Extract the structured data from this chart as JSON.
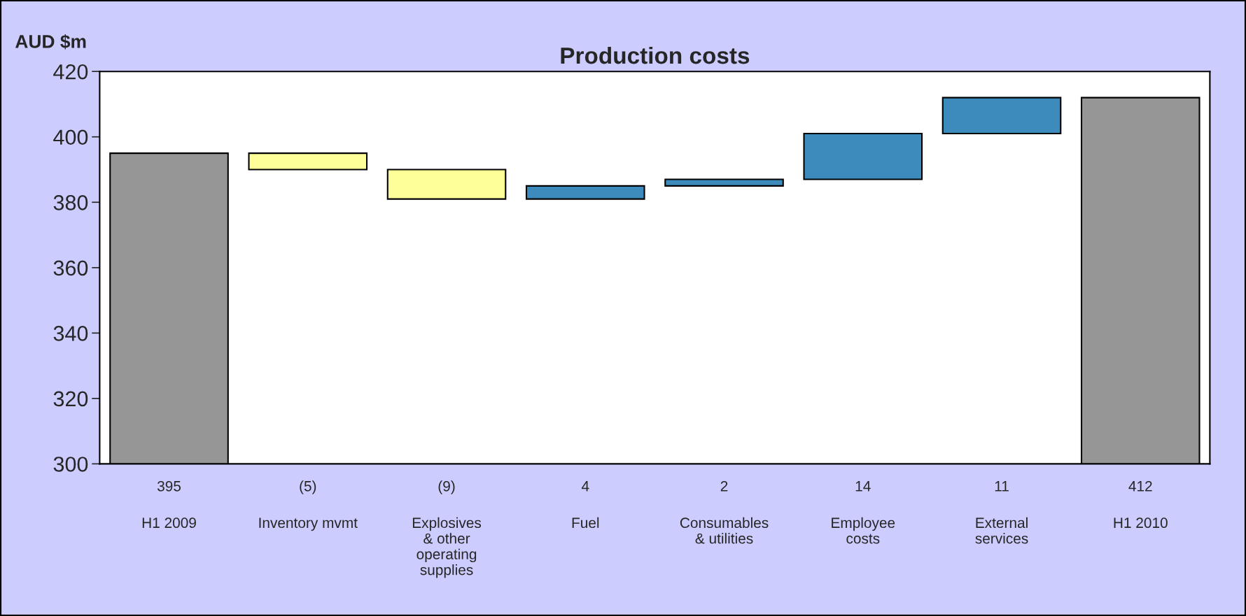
{
  "chart_data": {
    "type": "bar",
    "title": "Production costs",
    "ylabel": "AUD $m",
    "categories": [
      "H1 2009",
      "Inventory mvmt",
      "Explosives\n& other\noperating\nsupplies",
      "Fuel",
      "Consumables\n& utilities",
      "Employee\ncosts",
      "External\nservices",
      "H1 2010"
    ],
    "values": [
      395,
      -5,
      -9,
      4,
      2,
      14,
      11,
      412
    ],
    "base": [
      0,
      395,
      390,
      381,
      385,
      387,
      401,
      0
    ],
    "colors": [
      "#969696",
      "#ffff99",
      "#ffff99",
      "#3d8bbd",
      "#3d8bbd",
      "#3d8bbd",
      "#3d8bbd",
      "#969696"
    ],
    "value_labels": [
      "395",
      "(5)",
      "(9)",
      "4",
      "2",
      "14",
      "11",
      "412"
    ],
    "ylim": [
      300,
      420
    ],
    "yticks": [
      300,
      320,
      340,
      360,
      380,
      400,
      420
    ]
  }
}
